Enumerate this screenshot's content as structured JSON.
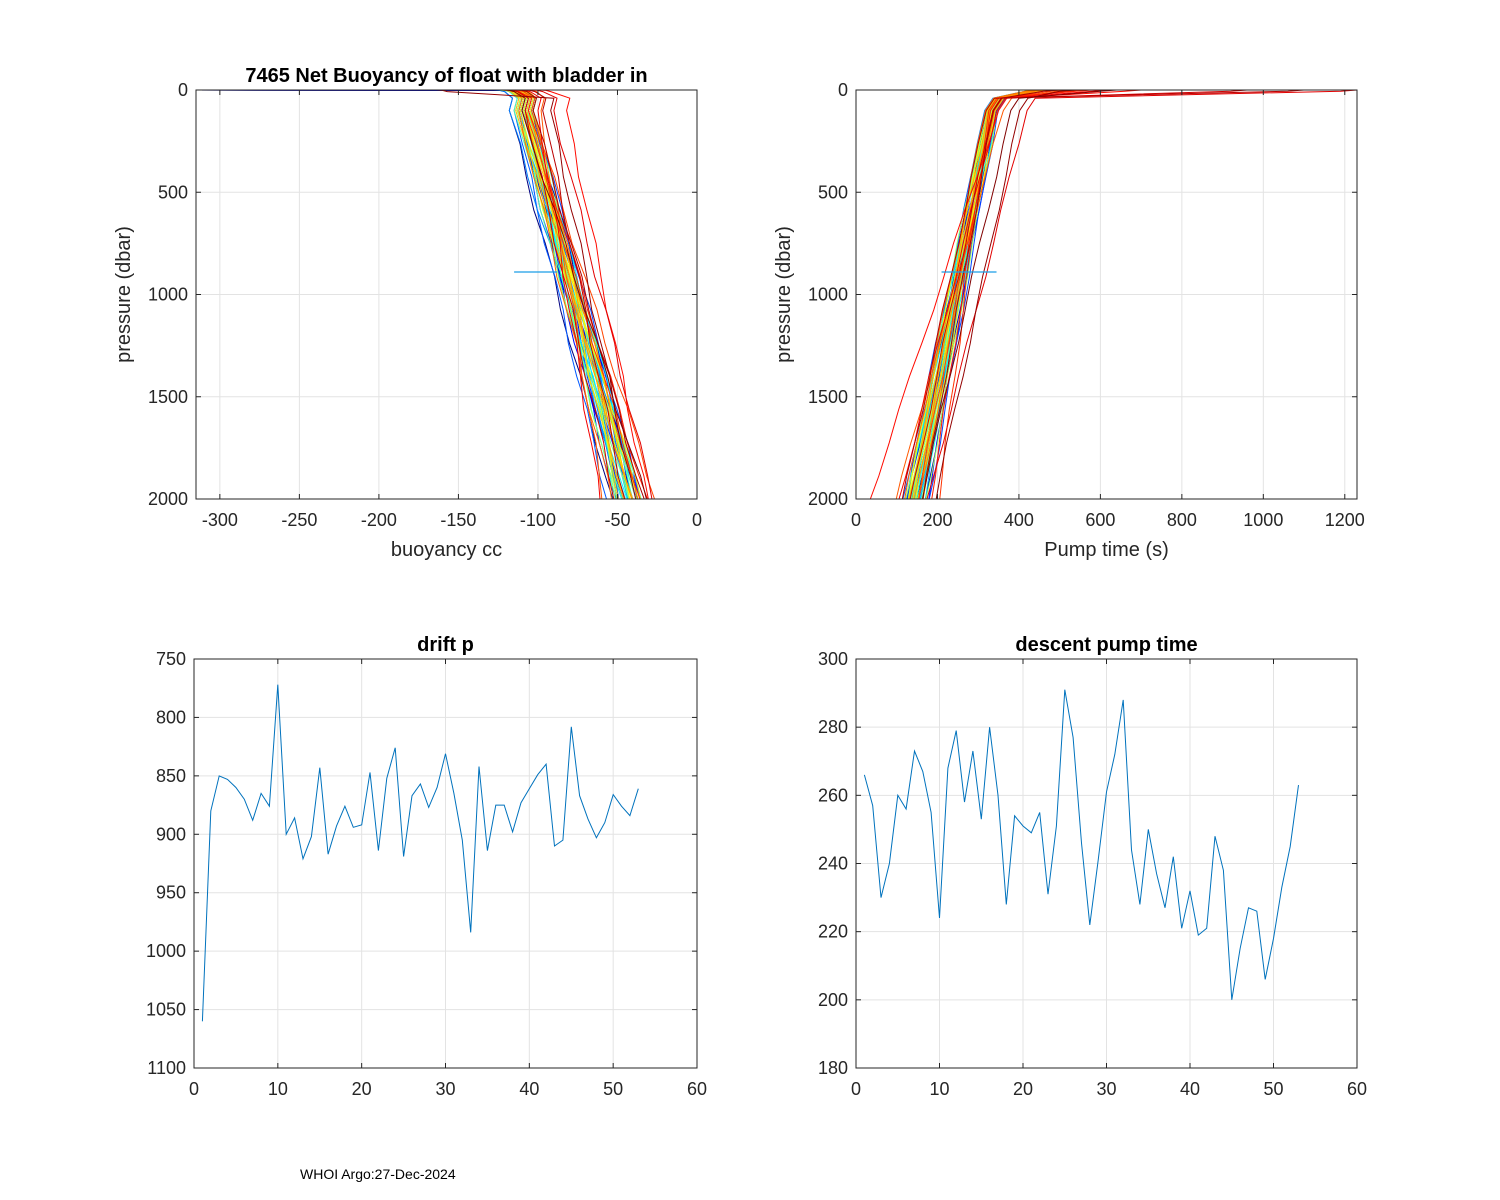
{
  "footer": "WHOI Argo:27-Dec-2024",
  "chart_data": [
    {
      "type": "line",
      "title": "7465 Net Buoyancy of float with bladder in",
      "xlabel": "buoyancy cc",
      "ylabel": "pressure (dbar)",
      "xlim": [
        -315,
        0
      ],
      "ylim": [
        0,
        2000
      ],
      "y_reversed": true,
      "xticks": [
        -300,
        -250,
        -200,
        -150,
        -100,
        -50,
        0
      ],
      "yticks": [
        0,
        500,
        1000,
        1500,
        2000
      ],
      "grid": true,
      "series_count": 53,
      "colormap": "jet",
      "series_parameters": {
        "b_shallow": [
          -118,
          -110,
          -104,
          -112,
          -106,
          -109,
          -113,
          -105,
          -108,
          -111,
          -103,
          -115,
          -107,
          -118,
          -110,
          -104,
          -112,
          -106,
          -109,
          -113,
          -105,
          -108,
          -111,
          -103,
          -115,
          -107,
          -110,
          -112,
          -106,
          -104,
          -108,
          -113,
          -109,
          -105,
          -111,
          -107,
          -114,
          -103,
          -110,
          -106,
          -112,
          -98,
          -104,
          -108,
          -106,
          -82,
          -100,
          -90,
          -108,
          -97,
          -103,
          -92,
          -110
        ],
        "b_deep": [
          -52,
          -40,
          -36,
          -48,
          -38,
          -45,
          -50,
          -35,
          -42,
          -47,
          -33,
          -55,
          -39,
          -44,
          -37,
          -49,
          -41,
          -36,
          -46,
          -43,
          -34,
          -51,
          -38,
          -40,
          -45,
          -37,
          -42,
          -50,
          -35,
          -48,
          -39,
          -44,
          -36,
          -41,
          -33,
          -47,
          -38,
          -45,
          -40,
          -36,
          -52,
          -58,
          -24,
          -34,
          -30,
          -30,
          -60,
          -26,
          -50,
          -44,
          -32,
          -38,
          -30
        ],
        "surface_b": [
          -124,
          -120,
          -115,
          -118,
          -112,
          -114,
          -119,
          -111,
          -116,
          -117,
          -110,
          -121,
          -113,
          -124,
          -116,
          -110,
          -118,
          -112,
          -115,
          -119,
          -111,
          -114,
          -117,
          -109,
          -121,
          -113,
          -116,
          -118,
          -112,
          -110,
          -114,
          -119,
          -115,
          -111,
          -117,
          -113,
          -120,
          -109,
          -116,
          -112,
          -118,
          -104,
          -112,
          -115,
          -115,
          -95,
          -108,
          -100,
          -116,
          -105,
          -110,
          -160,
          -118
        ]
      },
      "annotation": {
        "type": "segment",
        "x": [
          -115,
          -88
        ],
        "y": [
          890,
          890
        ]
      }
    },
    {
      "type": "line",
      "title": "",
      "xlabel": "Pump time (s)",
      "ylabel": "pressure (dbar)",
      "xlim": [
        0,
        1230
      ],
      "ylim": [
        0,
        2000
      ],
      "y_reversed": true,
      "xticks": [
        0,
        200,
        400,
        600,
        800,
        1000,
        1200
      ],
      "yticks": [
        0,
        500,
        1000,
        1500,
        2000
      ],
      "grid": true,
      "series_count": 53,
      "colormap": "jet",
      "series_parameters": {
        "t_shallow": [
          318,
          332,
          342,
          326,
          338,
          330,
          322,
          344,
          334,
          328,
          348,
          318,
          340,
          316,
          336,
          326,
          332,
          346,
          324,
          330,
          342,
          320,
          338,
          334,
          330,
          328,
          336,
          318,
          346,
          322,
          340,
          326,
          334,
          320,
          342,
          328,
          336,
          324,
          330,
          340,
          318,
          362,
          336,
          326,
          330,
          350,
          346,
          420,
          336,
          320,
          338,
          402,
          380
        ],
        "t_deep": [
          130,
          145,
          168,
          122,
          152,
          138,
          118,
          172,
          148,
          134,
          176,
          112,
          156,
          124,
          142,
          132,
          164,
          150,
          128,
          140,
          160,
          120,
          146,
          138,
          134,
          128,
          154,
          116,
          168,
          126,
          150,
          136,
          142,
          122,
          158,
          132,
          146,
          126,
          140,
          152,
          116,
          92,
          148,
          200,
          180,
          26,
          100,
          170,
          130,
          110,
          160,
          190,
          155
        ],
        "surface_t": [
          460,
          470,
          480,
          465,
          475,
          468,
          462,
          485,
          472,
          466,
          490,
          458,
          478,
          455,
          474,
          464,
          470,
          488,
          462,
          468,
          482,
          458,
          476,
          472,
          466,
          464,
          474,
          456,
          488,
          460,
          478,
          464,
          472,
          458,
          484,
          466,
          474,
          462,
          468,
          480,
          456,
          540,
          520,
          560,
          580,
          700,
          620,
          1230,
          960,
          1100,
          500,
          540,
          640
        ]
      },
      "annotation": {
        "type": "segment",
        "x": [
          210,
          345
        ],
        "y": [
          890,
          890
        ]
      }
    },
    {
      "type": "line",
      "title": "drift p",
      "xlabel": "",
      "ylabel": "",
      "xlim": [
        0,
        60
      ],
      "ylim": [
        750,
        1100
      ],
      "y_reversed": true,
      "xticks": [
        0,
        10,
        20,
        30,
        40,
        50,
        60
      ],
      "yticks": [
        750,
        800,
        850,
        900,
        950,
        1000,
        1050,
        1100
      ],
      "grid": true,
      "x": [
        1,
        2,
        3,
        4,
        5,
        6,
        7,
        8,
        9,
        10,
        11,
        12,
        13,
        14,
        15,
        16,
        17,
        18,
        19,
        20,
        21,
        22,
        23,
        24,
        25,
        26,
        27,
        28,
        29,
        30,
        31,
        32,
        33,
        34,
        35,
        36,
        37,
        38,
        39,
        40,
        41,
        42,
        43,
        44,
        45,
        46,
        47,
        48,
        49,
        50,
        51,
        52,
        53
      ],
      "values": [
        1060,
        880,
        850,
        853,
        860,
        870,
        888,
        865,
        876,
        772,
        900,
        886,
        921,
        902,
        843,
        917,
        893,
        876,
        894,
        892,
        847,
        914,
        852,
        826,
        919,
        867,
        857,
        877,
        860,
        831,
        865,
        905,
        984,
        842,
        914,
        875,
        875,
        898,
        873,
        861,
        849,
        840,
        910,
        905,
        808,
        867,
        887,
        903,
        890,
        866,
        876,
        884,
        861
      ],
      "series_color": "#0072bd"
    },
    {
      "type": "line",
      "title": "descent pump time",
      "xlabel": "",
      "ylabel": "",
      "xlim": [
        0,
        60
      ],
      "ylim": [
        180,
        300
      ],
      "y_reversed": false,
      "xticks": [
        0,
        10,
        20,
        30,
        40,
        50,
        60
      ],
      "yticks": [
        180,
        200,
        220,
        240,
        260,
        280,
        300
      ],
      "grid": true,
      "x": [
        1,
        2,
        3,
        4,
        5,
        6,
        7,
        8,
        9,
        10,
        11,
        12,
        13,
        14,
        15,
        16,
        17,
        18,
        19,
        20,
        21,
        22,
        23,
        24,
        25,
        26,
        27,
        28,
        29,
        30,
        31,
        32,
        33,
        34,
        35,
        36,
        37,
        38,
        39,
        40,
        41,
        42,
        43,
        44,
        45,
        46,
        47,
        48,
        49,
        50,
        51,
        52,
        53
      ],
      "values": [
        266,
        257,
        230,
        240,
        260,
        256,
        273,
        267,
        255,
        224,
        268,
        279,
        258,
        273,
        253,
        280,
        260,
        228,
        254,
        251,
        249,
        255,
        231,
        251,
        291,
        277,
        246,
        222,
        241,
        261,
        272,
        288,
        244,
        228,
        250,
        237,
        227,
        242,
        221,
        232,
        219,
        221,
        248,
        238,
        200,
        215,
        227,
        226,
        206,
        218,
        233,
        245,
        263
      ],
      "series_color": "#0072bd"
    }
  ]
}
